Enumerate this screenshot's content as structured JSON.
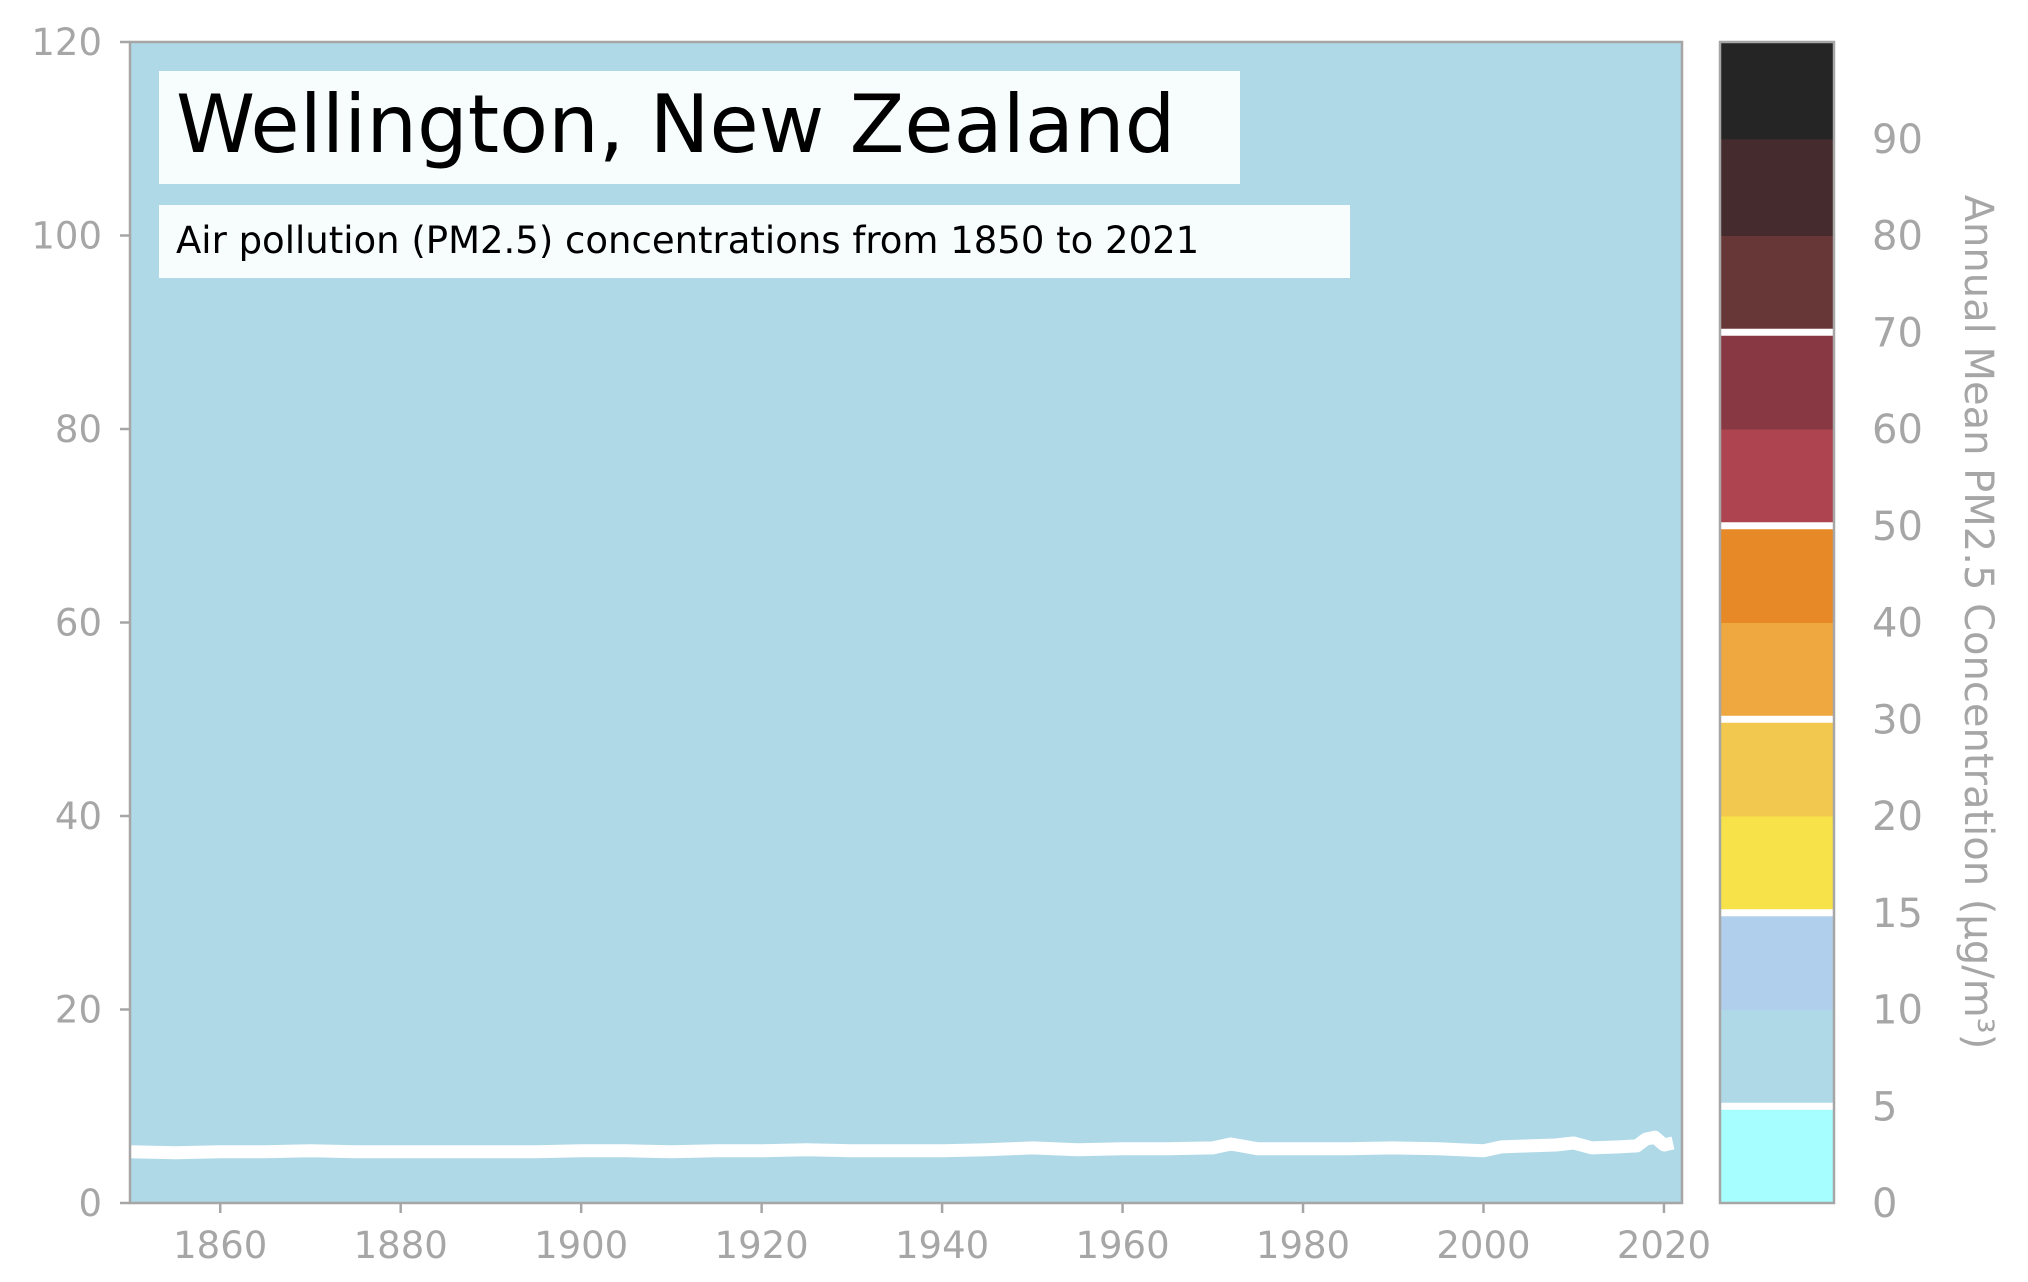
{
  "chart_data": {
    "type": "line",
    "title": "Wellington, New Zealand",
    "subtitle": "Air pollution (PM2.5) concentrations from 1850 to 2021",
    "xlabel": "",
    "ylabel": "",
    "xlim": [
      1850,
      2022
    ],
    "ylim": [
      0,
      120
    ],
    "x_ticks": [
      "1860",
      "1880",
      "1900",
      "1920",
      "1940",
      "1960",
      "1980",
      "2000",
      "2020"
    ],
    "y_ticks": [
      "0",
      "20",
      "40",
      "60",
      "80",
      "100",
      "120"
    ],
    "grid": false,
    "background_color": "#b0d9e8",
    "series": [
      {
        "color": "#ffffff",
        "x": [
          1850,
          1855,
          1860,
          1865,
          1870,
          1875,
          1880,
          1885,
          1890,
          1895,
          1900,
          1905,
          1910,
          1915,
          1920,
          1925,
          1930,
          1935,
          1940,
          1945,
          1950,
          1955,
          1960,
          1965,
          1970,
          1972,
          1975,
          1980,
          1985,
          1990,
          1995,
          2000,
          2002,
          2005,
          2008,
          2010,
          2012,
          2015,
          2017,
          2018,
          2019,
          2020,
          2021
        ],
        "values": [
          5.3,
          5.2,
          5.3,
          5.3,
          5.4,
          5.3,
          5.3,
          5.3,
          5.3,
          5.3,
          5.4,
          5.4,
          5.3,
          5.4,
          5.4,
          5.5,
          5.4,
          5.4,
          5.4,
          5.5,
          5.7,
          5.5,
          5.6,
          5.6,
          5.7,
          6.1,
          5.6,
          5.6,
          5.6,
          5.7,
          5.6,
          5.4,
          5.8,
          5.9,
          6.0,
          6.2,
          5.7,
          5.8,
          5.9,
          6.6,
          6.8,
          6.0,
          6.2
        ]
      }
    ],
    "colorbar": {
      "label": "Annual Mean PM2.5 Concentration (μg/m³)",
      "tick_labels": [
        "0",
        "5",
        "10",
        "15",
        "20",
        "30",
        "40",
        "50",
        "60",
        "70",
        "80",
        "90"
      ],
      "bands": [
        {
          "color": "#a6fffe"
        },
        {
          "color": "#b0d9e8"
        },
        {
          "color": "#b0cfec"
        },
        {
          "color": "#f7e249"
        },
        {
          "color": "#f2c84e"
        },
        {
          "color": "#efa740"
        },
        {
          "color": "#e78927"
        },
        {
          "color": "#ae444f"
        },
        {
          "color": "#883843"
        },
        {
          "color": "#673737"
        },
        {
          "color": "#452b2d"
        },
        {
          "color": "#252525"
        }
      ],
      "separators_after_band": [
        0,
        2,
        4,
        6,
        8
      ]
    }
  }
}
